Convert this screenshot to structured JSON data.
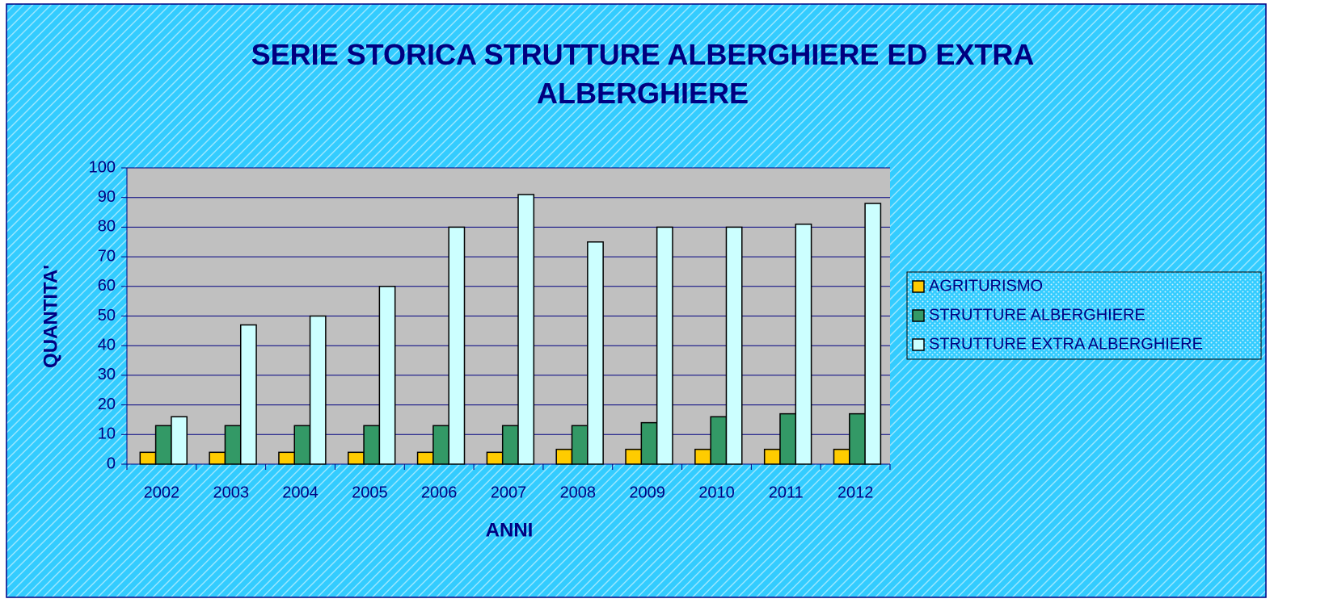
{
  "chart_data": {
    "type": "bar",
    "title": "SERIE STORICA STRUTTURE ALBERGHIERE ED EXTRA ALBERGHIERE",
    "x_label": "ANNI",
    "y_label": "QUANTITA'",
    "categories": [
      "2002",
      "2003",
      "2004",
      "2005",
      "2006",
      "2007",
      "2008",
      "2009",
      "2010",
      "2011",
      "2012"
    ],
    "series": [
      {
        "name": "AGRITURISMO",
        "color": "#ffcc00",
        "values": [
          4,
          4,
          4,
          4,
          4,
          4,
          5,
          5,
          5,
          5,
          5
        ]
      },
      {
        "name": "STRUTTURE ALBERGHIERE",
        "color": "#339966",
        "values": [
          13,
          13,
          13,
          13,
          13,
          13,
          13,
          14,
          16,
          17,
          17
        ]
      },
      {
        "name": "STRUTTURE EXTRA ALBERGHIERE",
        "color": "#ccffff",
        "values": [
          16,
          47,
          50,
          60,
          80,
          91,
          75,
          80,
          80,
          81,
          88
        ]
      }
    ],
    "ylim": [
      0,
      100
    ],
    "yticks": [
      0,
      10,
      20,
      30,
      40,
      50,
      60,
      70,
      80,
      90,
      100
    ],
    "grid": true,
    "legend": "right"
  }
}
